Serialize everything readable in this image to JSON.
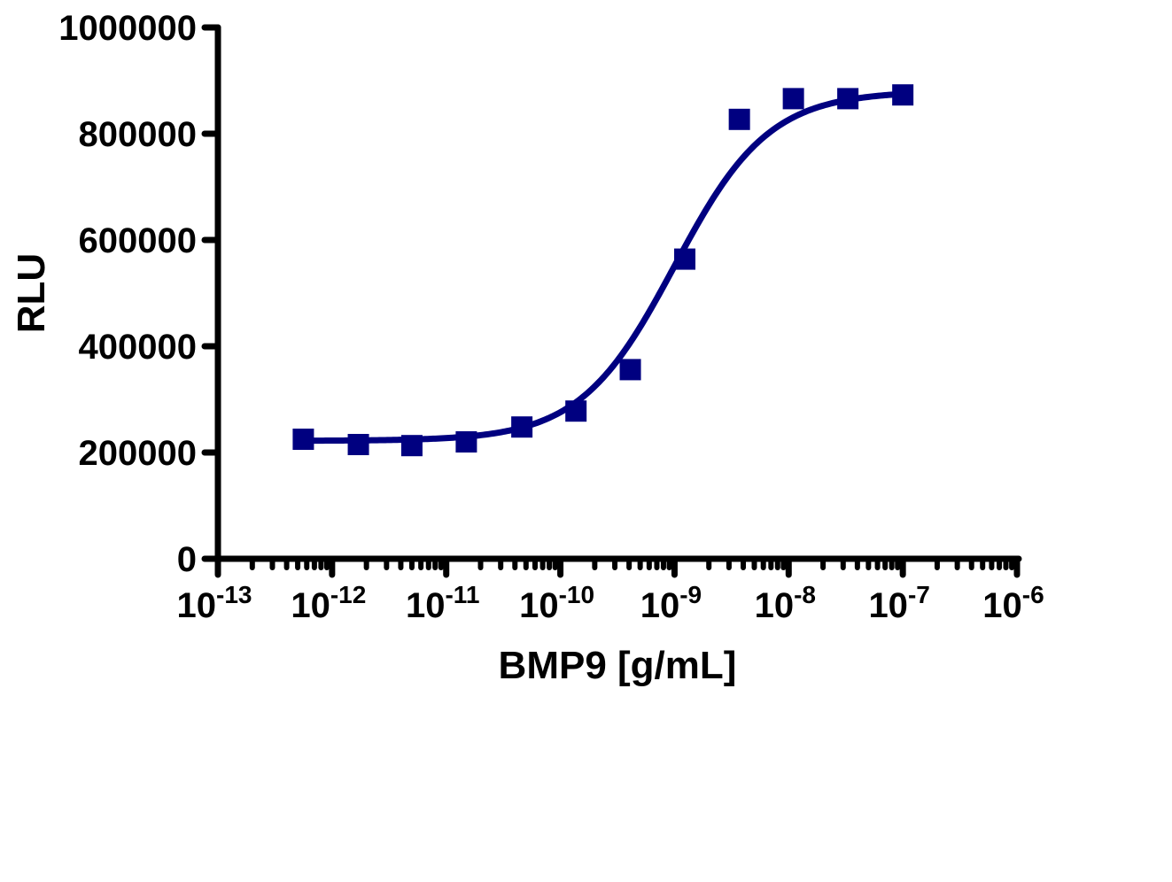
{
  "chart_data": {
    "type": "scatter",
    "title": "",
    "xlabel": "BMP9 [g/mL]",
    "ylabel": "RLU",
    "xscale": "log",
    "xlim": [
      1e-13,
      1e-06
    ],
    "ylim": [
      0,
      1000000
    ],
    "x_ticks": [
      {
        "exp": "-13",
        "base": "10",
        "value": 1e-13
      },
      {
        "exp": "-12",
        "base": "10",
        "value": 1e-12
      },
      {
        "exp": "-11",
        "base": "10",
        "value": 1e-11
      },
      {
        "exp": "-10",
        "base": "10",
        "value": 1e-10
      },
      {
        "exp": "-9",
        "base": "10",
        "value": 1e-09
      },
      {
        "exp": "-8",
        "base": "10",
        "value": 1e-08
      },
      {
        "exp": "-7",
        "base": "10",
        "value": 1e-07
      },
      {
        "exp": "-6",
        "base": "10",
        "value": 1e-06
      }
    ],
    "y_ticks": [
      "0",
      "200000",
      "400000",
      "600000",
      "800000",
      "1000000"
    ],
    "y_tick_values": [
      0,
      200000,
      400000,
      600000,
      800000,
      1000000
    ],
    "grid": false,
    "legend": null,
    "series": [
      {
        "name": "BMP9",
        "color": "#000080",
        "marker": "square",
        "x": [
          5.6e-13,
          1.7e-12,
          5e-12,
          1.5e-11,
          4.6e-11,
          1.37e-10,
          4.1e-10,
          1.23e-09,
          3.7e-09,
          1.1e-08,
          3.3e-08,
          1e-07
        ],
        "y": [
          225000,
          215000,
          213000,
          220000,
          248000,
          278000,
          356000,
          564000,
          827000,
          866000,
          866000,
          873000
        ]
      }
    ],
    "fit_curve": {
      "type": "4PL sigmoid",
      "color": "#000080",
      "bottom": 222000,
      "top": 880000,
      "ec50": 1e-09,
      "hill_slope": 1.05,
      "x_range": [
        5.6e-13,
        1e-07
      ]
    }
  }
}
